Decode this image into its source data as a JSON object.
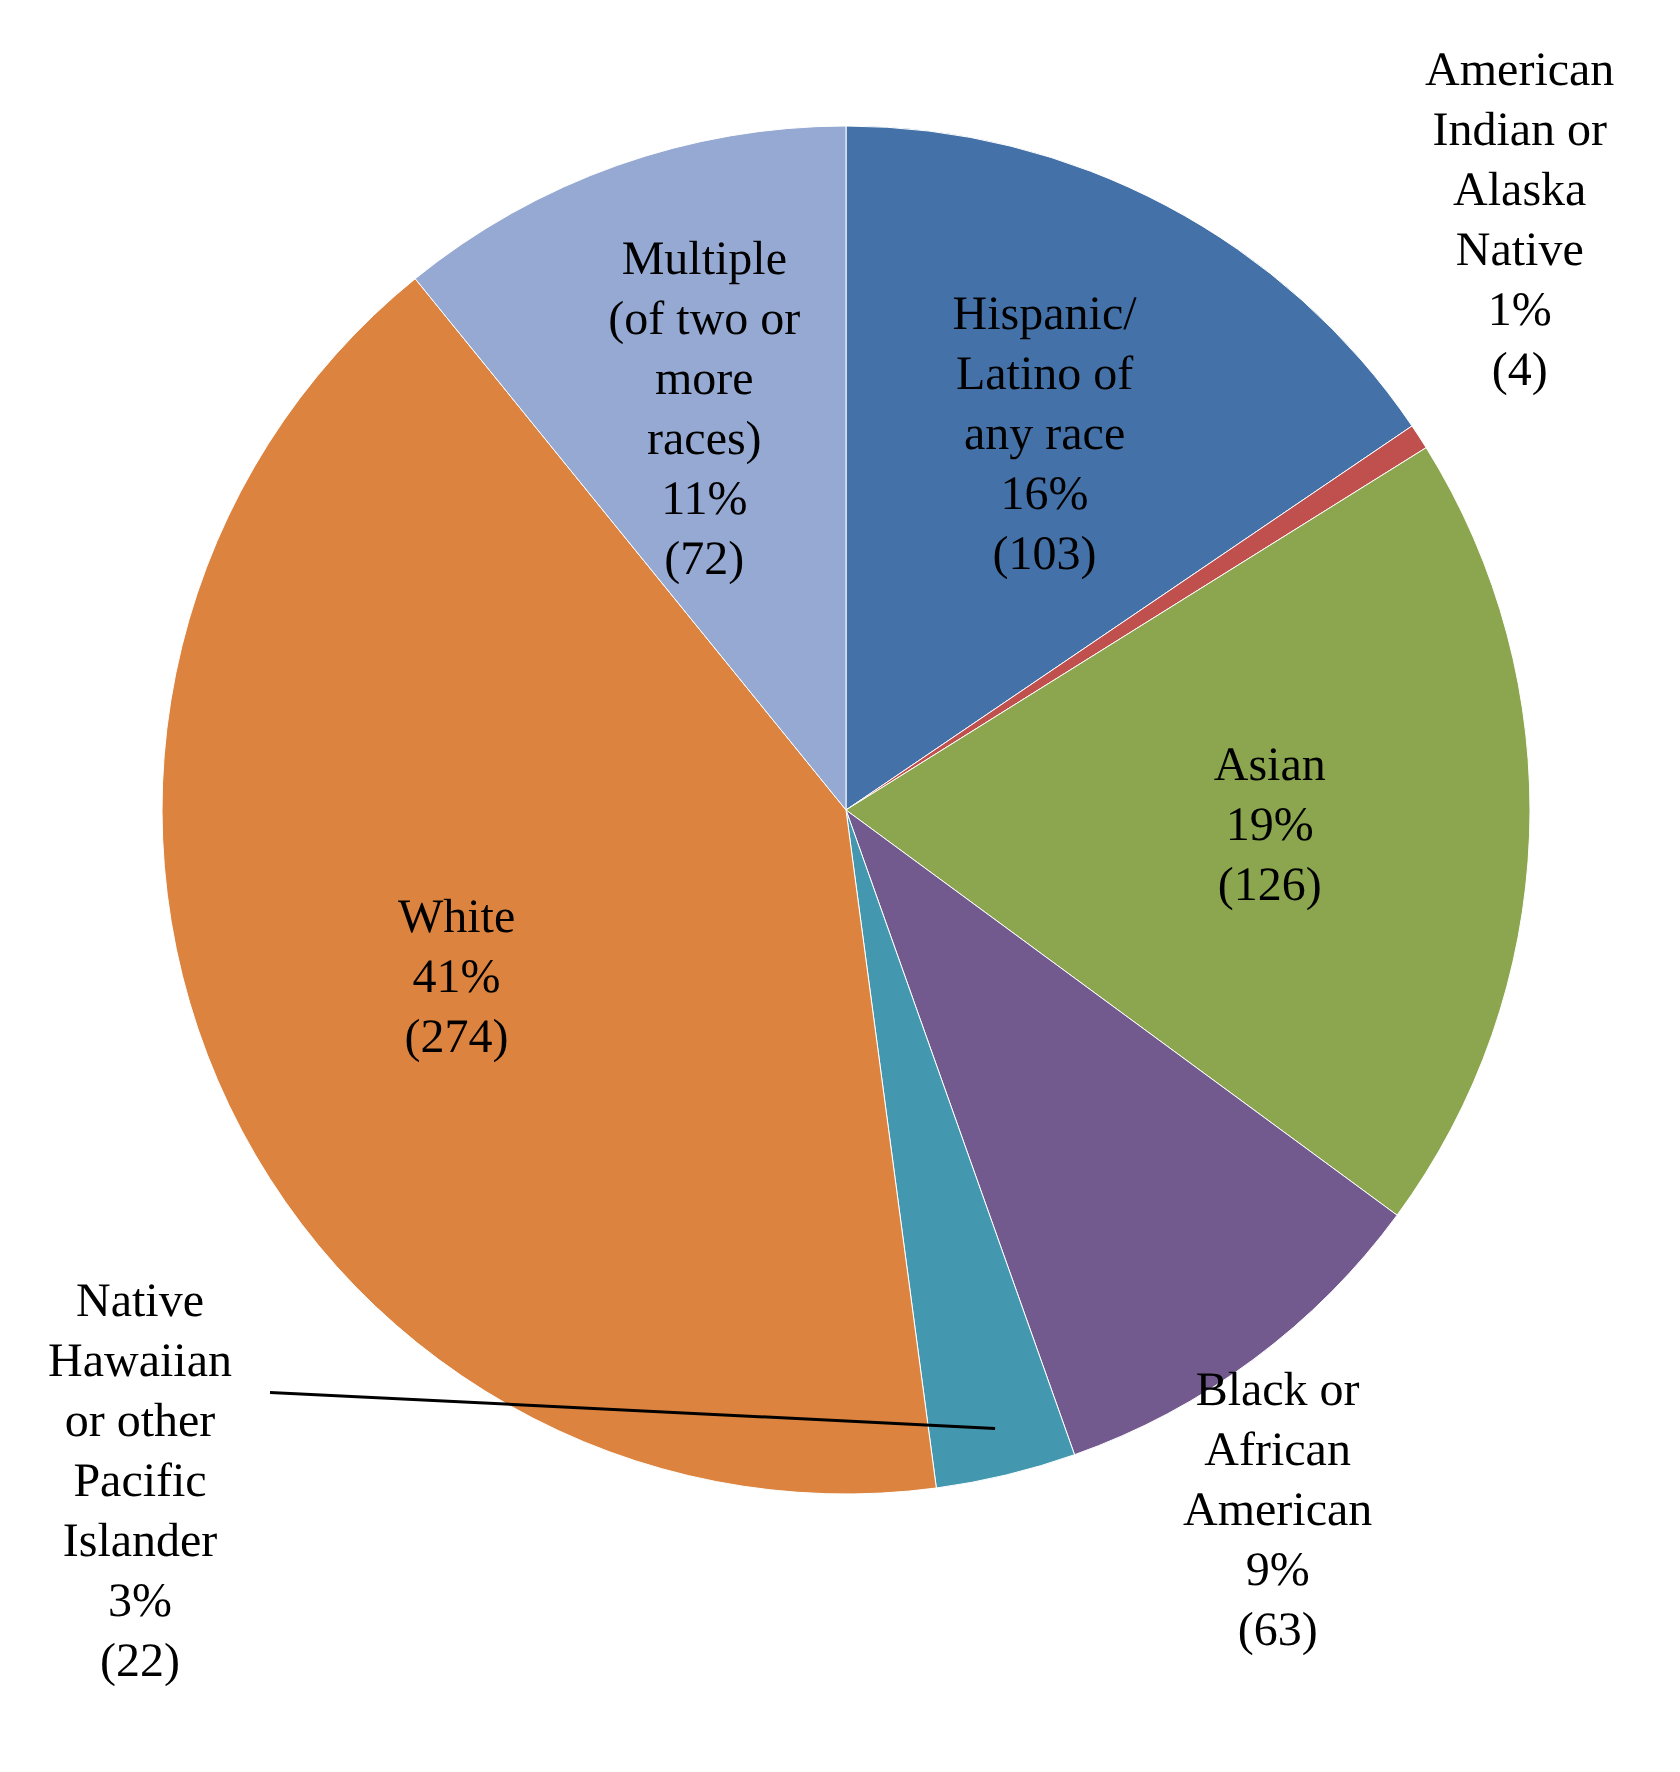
{
  "chart_data": {
    "type": "pie",
    "categories": [
      "Hispanic/ Latino of any race",
      "American Indian or Alaska Native",
      "Asian",
      "Black or African American",
      "Native Hawaiian or other Pacific Islander",
      "White",
      "Multiple (of two or more races)"
    ],
    "values": [
      103,
      4,
      126,
      63,
      22,
      274,
      72
    ],
    "value_labels": [
      "16% (103)",
      "1% (4)",
      "19% (126)",
      "9% (63)",
      "3% (22)",
      "41% (274)",
      "11% (72)"
    ],
    "colors": [
      "#4472a8",
      "#c0504d",
      "#8ba64e",
      "#735a8e",
      "#4398b0",
      "#dc843f",
      "#95a9d2"
    ]
  }
}
